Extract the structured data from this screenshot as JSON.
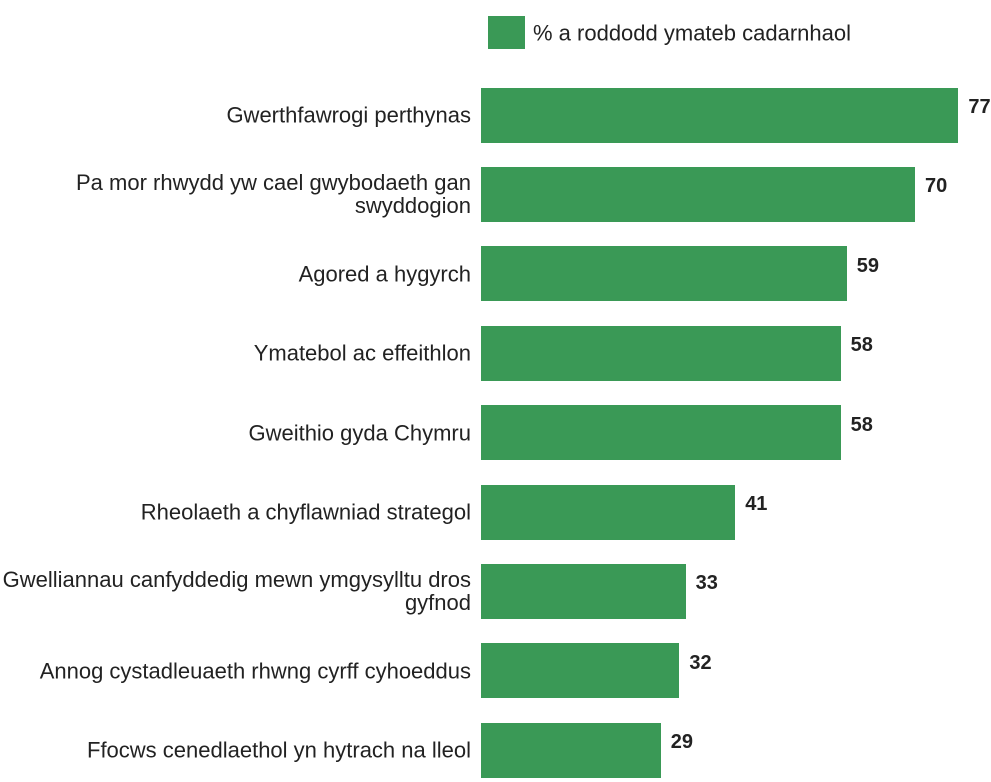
{
  "chart_data": {
    "type": "bar",
    "orientation": "horizontal",
    "categories": [
      "Gwerthfawrogi perthynas",
      "Pa mor rhwydd yw cael gwybodaeth gan swyddogion",
      "Agored a hygyrch",
      "Ymatebol ac effeithlon",
      "Gweithio gyda Chymru",
      "Rheolaeth a chyflawniad strategol",
      "Gwelliannau canfyddedig mewn ymgysylltu dros gyfnod",
      "Annog cystadleuaeth rhwng cyrff cyhoeddus",
      "Ffocws cenedlaethol yn hytrach na lleol"
    ],
    "series": [
      {
        "name": "% a roddodd ymateb cadarnhaol",
        "color": "#3a9956",
        "values": [
          77,
          70,
          59,
          58,
          58,
          41,
          33,
          32,
          29
        ]
      }
    ],
    "xlim": [
      0,
      80
    ],
    "legend": "top-right"
  }
}
